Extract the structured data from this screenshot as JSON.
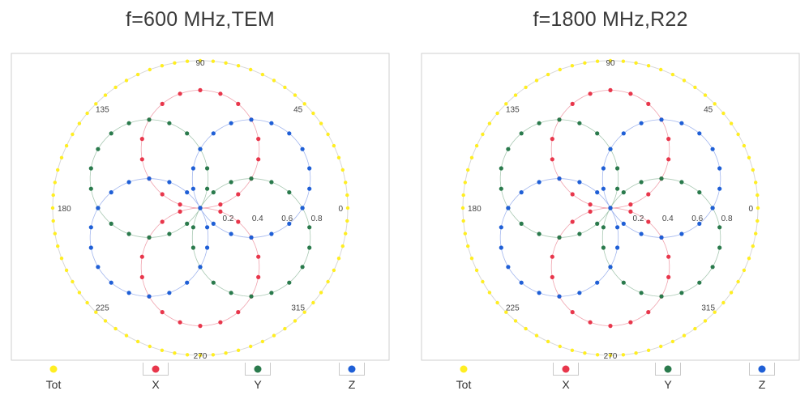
{
  "colors": {
    "tot": "#ffee22",
    "x": "#e8364b",
    "y": "#2a7a4c",
    "z": "#1f5fd6",
    "line_x": "#f0a3ae",
    "line_y": "#a9c9b3",
    "line_z": "#a3b7ee",
    "frame": "#cfcfcf",
    "outer_circle": "#d8d8d8"
  },
  "legend": [
    {
      "key": "tot",
      "label": "Tot"
    },
    {
      "key": "x",
      "label": "X"
    },
    {
      "key": "y",
      "label": "Y"
    },
    {
      "key": "z",
      "label": "Z"
    }
  ],
  "chart_data": [
    {
      "type": "scatter",
      "subtype": "polar",
      "title": "f=600 MHz,TEM",
      "angular_ticks": [
        "0",
        "45",
        "90",
        "135",
        "180",
        "225",
        "270",
        "315"
      ],
      "radial_ticks": [
        "0.2",
        "0.4",
        "0.6",
        "0.8"
      ],
      "r_range": [
        0,
        1
      ],
      "series": [
        {
          "name": "Tot",
          "key": "tot",
          "pattern": "constant",
          "r": 1.0,
          "points": 72
        },
        {
          "name": "X",
          "key": "x",
          "pattern": "abs_sin",
          "peak_deg": 90,
          "r_max": 0.8,
          "points": 36
        },
        {
          "name": "Y",
          "key": "y",
          "pattern": "abs_sin",
          "peak_deg": 150,
          "r_max": 0.8,
          "points": 36
        },
        {
          "name": "Z",
          "key": "z",
          "pattern": "abs_sin",
          "peak_deg": 30,
          "r_max": 0.8,
          "points": 36
        }
      ]
    },
    {
      "type": "scatter",
      "subtype": "polar",
      "title": "f=1800 MHz,R22",
      "angular_ticks": [
        "0",
        "45",
        "90",
        "135",
        "180",
        "225",
        "270",
        "315"
      ],
      "radial_ticks": [
        "0.2",
        "0.4",
        "0.6",
        "0.8"
      ],
      "r_range": [
        0,
        1
      ],
      "series": [
        {
          "name": "Tot",
          "key": "tot",
          "pattern": "constant",
          "r": 1.0,
          "points": 72
        },
        {
          "name": "X",
          "key": "x",
          "pattern": "abs_sin",
          "peak_deg": 90,
          "r_max": 0.8,
          "points": 36
        },
        {
          "name": "Y",
          "key": "y",
          "pattern": "abs_sin",
          "peak_deg": 150,
          "r_max": 0.8,
          "points": 36
        },
        {
          "name": "Z",
          "key": "z",
          "pattern": "abs_sin",
          "peak_deg": 30,
          "r_max": 0.8,
          "points": 36
        }
      ]
    }
  ]
}
